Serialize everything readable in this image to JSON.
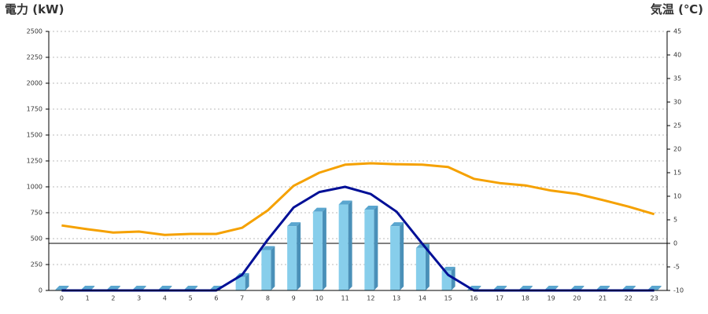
{
  "chart_data": {
    "type": "bar-line",
    "y_axis_label": "電力 (kW)",
    "y_axis_color": "#1f77c8",
    "y2_axis_label": "気温 (℃)",
    "y2_axis_color": "#f08a1c",
    "categories": [
      "0",
      "1",
      "2",
      "3",
      "4",
      "5",
      "6",
      "7",
      "8",
      "9",
      "10",
      "11",
      "12",
      "13",
      "14",
      "15",
      "16",
      "17",
      "18",
      "19",
      "20",
      "21",
      "22",
      "23"
    ],
    "series": [
      {
        "type": "bar",
        "color": "#87ceeb",
        "values": [
          0,
          0,
          0,
          0,
          0,
          0,
          0,
          130,
          390,
          620,
          760,
          830,
          780,
          620,
          410,
          190,
          0,
          0,
          0,
          0,
          0,
          0,
          0,
          0
        ]
      },
      {
        "type": "line",
        "color": "#000f96",
        "values": [
          0,
          0,
          0,
          0,
          0,
          0,
          0,
          150,
          490,
          800,
          950,
          1000,
          930,
          760,
          450,
          150,
          0,
          0,
          0,
          0,
          0,
          0,
          0,
          0
        ]
      },
      {
        "type": "line",
        "color": "#f5a100",
        "axis": "y2",
        "values": [
          3.8,
          3,
          2.3,
          2.5,
          1.8,
          2,
          2,
          3.3,
          7,
          12.2,
          15,
          16.7,
          17,
          16.8,
          16.7,
          16.2,
          13.7,
          12.8,
          12.3,
          11.2,
          10.5,
          9.2,
          7.8,
          6.2
        ]
      }
    ],
    "ylim": [
      0,
      2500
    ],
    "yticks": [
      0,
      250,
      500,
      750,
      1000,
      1250,
      1500,
      1750,
      2000,
      2250,
      2500
    ],
    "y2lim": [
      -10,
      45
    ],
    "y2ticks": [
      -10,
      -5,
      0,
      5,
      10,
      15,
      20,
      25,
      30,
      35,
      40,
      45
    ],
    "y2_refline": 0,
    "grid": true
  }
}
